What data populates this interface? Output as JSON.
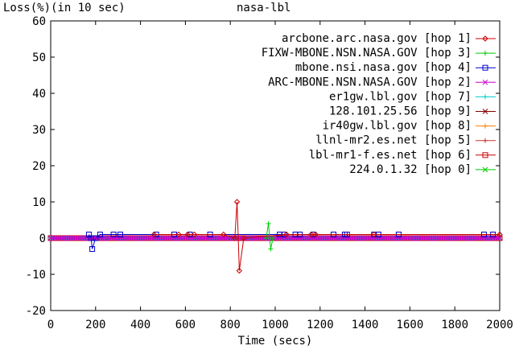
{
  "chart_data": {
    "type": "line",
    "title": "nasa-lbl",
    "ylabel": "Loss(%)(in 10 sec)",
    "xlabel": "Time (secs)",
    "xlim": [
      0,
      2000
    ],
    "ylim": [
      -20,
      60
    ],
    "x_ticks": [
      0,
      200,
      400,
      600,
      800,
      1000,
      1200,
      1400,
      1600,
      1800,
      2000
    ],
    "y_ticks": [
      -20,
      -10,
      0,
      10,
      20,
      30,
      40,
      50,
      60
    ],
    "x_tick_labels": [
      "0",
      "200",
      "400",
      "600",
      "800",
      "1000",
      "1200",
      "1400",
      "1600",
      "1800",
      "2000"
    ],
    "y_tick_labels": [
      "-20",
      "-10",
      "0",
      "10",
      "20",
      "30",
      "40",
      "50",
      "60"
    ],
    "legend_position": "top-right",
    "grid": false,
    "baseline_step": 10,
    "series": [
      {
        "name": "arcbone.arc.nasa.gov",
        "hop": "[hop 1]",
        "color": "#cc0000",
        "marker": "diamond",
        "points": [
          [
            460,
            1
          ],
          [
            570,
            1
          ],
          [
            610,
            1
          ],
          [
            640,
            1
          ],
          [
            770,
            1
          ],
          [
            820,
            0
          ],
          [
            830,
            10
          ],
          [
            840,
            -9
          ],
          [
            860,
            0
          ],
          [
            1050,
            1
          ],
          [
            1160,
            1
          ],
          [
            1180,
            1
          ],
          [
            1440,
            1
          ],
          [
            2000,
            1
          ]
        ]
      },
      {
        "name": "FIXW-MBONE.NSN.NASA.GOV",
        "hop": "[hop 3]",
        "color": "#00cc00",
        "marker": "plus",
        "points": [
          [
            960,
            0
          ],
          [
            970,
            4
          ],
          [
            980,
            -3
          ],
          [
            990,
            0
          ]
        ]
      },
      {
        "name": "mbone.nsi.nasa.gov",
        "hop": "[hop 4]",
        "color": "#0000cc",
        "marker": "square",
        "points": [
          [
            170,
            1
          ],
          [
            180,
            0
          ],
          [
            185,
            -3
          ],
          [
            200,
            0
          ],
          [
            220,
            1
          ],
          [
            280,
            1
          ],
          [
            310,
            1
          ],
          [
            470,
            1
          ],
          [
            550,
            1
          ],
          [
            620,
            1
          ],
          [
            710,
            1
          ],
          [
            1020,
            1
          ],
          [
            1040,
            1
          ],
          [
            1090,
            1
          ],
          [
            1110,
            1
          ],
          [
            1170,
            1
          ],
          [
            1260,
            1
          ],
          [
            1310,
            1
          ],
          [
            1320,
            1
          ],
          [
            1440,
            1
          ],
          [
            1460,
            1
          ],
          [
            1550,
            1
          ],
          [
            1930,
            1
          ],
          [
            1970,
            1
          ]
        ]
      },
      {
        "name": "ARC-MBONE.NSN.NASA.GOV",
        "hop": "[hop 2]",
        "color": "#cc00cc",
        "marker": "cross",
        "points": []
      },
      {
        "name": "er1gw.lbl.gov",
        "hop": "[hop 7]",
        "color": "#00cccc",
        "marker": "plus",
        "points": []
      },
      {
        "name": "128.101.25.56",
        "hop": "[hop 9]",
        "color": "#800000",
        "marker": "star",
        "points": []
      },
      {
        "name": "ir40gw.lbl.gov",
        "hop": "[hop 8]",
        "color": "#ff8000",
        "marker": "plus",
        "points": []
      },
      {
        "name": "llnl-mr2.es.net",
        "hop": "[hop 5]",
        "color": "#cc3333",
        "marker": "plus",
        "points": []
      },
      {
        "name": "lbl-mr1-f.es.net",
        "hop": "[hop 6]",
        "color": "#cc0000",
        "marker": "square-open",
        "points": []
      },
      {
        "name": "224.0.1.32",
        "hop": "[hop 0]",
        "color": "#00cc00",
        "marker": "cross",
        "points": []
      }
    ]
  }
}
